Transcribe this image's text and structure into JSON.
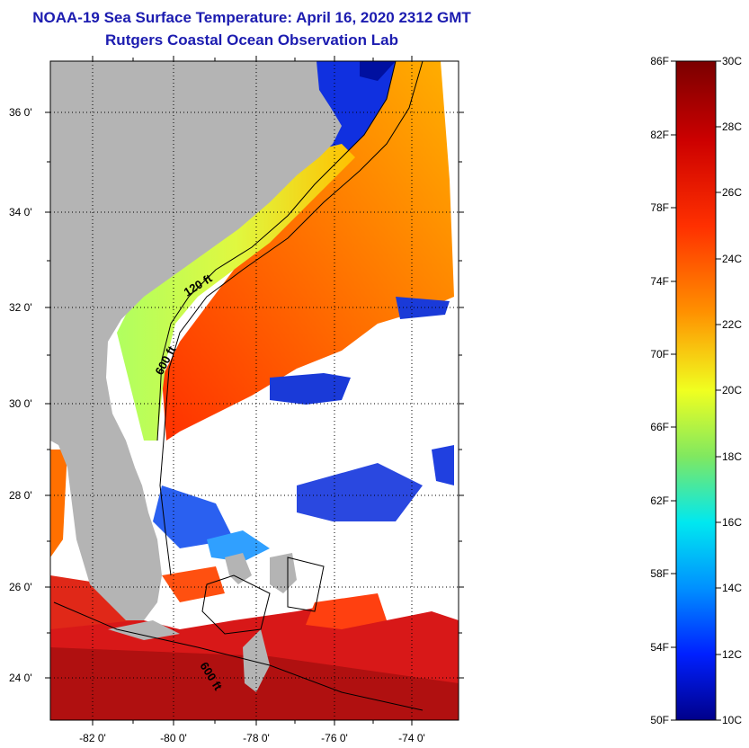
{
  "title": {
    "line1": "NOAA-19 Sea Surface Temperature:  April 16, 2020 2312 GMT",
    "line2": "Rutgers Coastal Ocean Observation Lab"
  },
  "map": {
    "lat_labels": [
      "36 0'",
      "34 0'",
      "32 0'",
      "30 0'",
      "28 0'",
      "26 0'",
      "24 0'"
    ],
    "lon_labels": [
      "-82 0'",
      "-80 0'",
      "-78 0'",
      "-76 0'",
      "-74 0'"
    ],
    "contour_labels": [
      "120 ft",
      "600 ft",
      "600 ft"
    ]
  },
  "colorbar": {
    "fahrenheit_labels": [
      "86F",
      "82F",
      "78F",
      "74F",
      "70F",
      "66F",
      "62F",
      "58F",
      "54F",
      "50F"
    ],
    "celsius_labels": [
      "30C",
      "28C",
      "26C",
      "24C",
      "22C",
      "20C",
      "18C",
      "16C",
      "14C",
      "12C",
      "10C"
    ],
    "colors": {
      "top": "#7a0000",
      "red": "#e01010",
      "orange": "#ff8000",
      "yellow": "#f0ff20",
      "green": "#60e060",
      "cyan": "#00e0ff",
      "blue": "#0050ff",
      "bottom": "#00008a"
    }
  },
  "colors": {
    "land": "#b4b4b4",
    "title": "#1c1cb0",
    "cloud": "#ffffff"
  }
}
